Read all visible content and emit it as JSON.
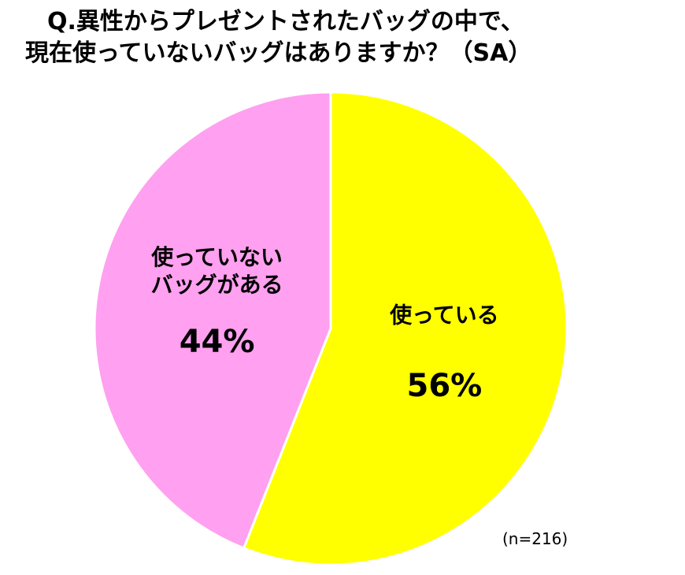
{
  "chart_data": {
    "type": "pie",
    "title": [
      "Q.異性からプレゼントされたバッグの中で、",
      "現在使っていないバッグはありますか？（SA）"
    ],
    "categories": [
      "使っている",
      "使っていない\nバッグがある"
    ],
    "values": [
      56,
      44
    ],
    "value_labels": [
      "56%",
      "44%"
    ],
    "colors": [
      "#ffff00",
      "#ffa0f0"
    ],
    "annotation": "(n=216)"
  }
}
